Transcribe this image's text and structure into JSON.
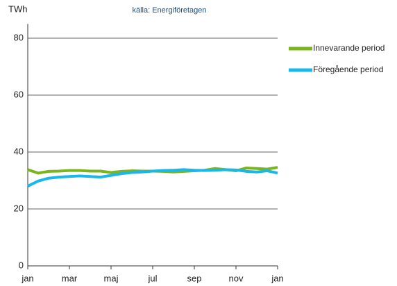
{
  "chart_data": {
    "type": "line",
    "subtitle": "källa: Energiföretagen",
    "y_label": "TWh",
    "x": [
      0,
      0.5,
      1,
      1.5,
      2,
      2.5,
      3,
      3.5,
      4,
      4.5,
      5,
      5.5,
      6,
      6.5,
      7,
      7.5,
      8,
      8.5,
      9,
      9.5,
      10,
      10.5,
      11,
      11.5,
      12
    ],
    "series": [
      {
        "name": "Innevarande period",
        "color": "#7ab51d",
        "values": [
          33.8,
          32.6,
          33.2,
          33.3,
          33.5,
          33.5,
          33.3,
          33.3,
          32.8,
          33.2,
          33.4,
          33.3,
          33.3,
          33.2,
          33.0,
          33.2,
          33.4,
          33.6,
          34.2,
          33.8,
          33.4,
          34.4,
          34.2,
          34.0,
          34.6
        ]
      },
      {
        "name": "Föregående period",
        "color": "#1ab7ea",
        "values": [
          28.0,
          29.8,
          30.8,
          31.2,
          31.4,
          31.6,
          31.4,
          31.2,
          31.8,
          32.4,
          32.8,
          33.0,
          33.3,
          33.5,
          33.6,
          33.8,
          33.6,
          33.5,
          33.6,
          33.8,
          33.7,
          33.2,
          33.0,
          33.4,
          32.6
        ]
      }
    ],
    "xlim": [
      0,
      12
    ],
    "xticks": [
      {
        "value": 0,
        "label": "jan"
      },
      {
        "value": 2,
        "label": "mar"
      },
      {
        "value": 4,
        "label": "maj"
      },
      {
        "value": 6,
        "label": "jul"
      },
      {
        "value": 8,
        "label": "sep"
      },
      {
        "value": 10,
        "label": "nov"
      },
      {
        "value": 12,
        "label": "jan"
      }
    ],
    "ylim": [
      0,
      85
    ],
    "yticks": [
      0,
      20,
      40,
      60,
      80
    ],
    "grid": true,
    "legend": "right"
  }
}
